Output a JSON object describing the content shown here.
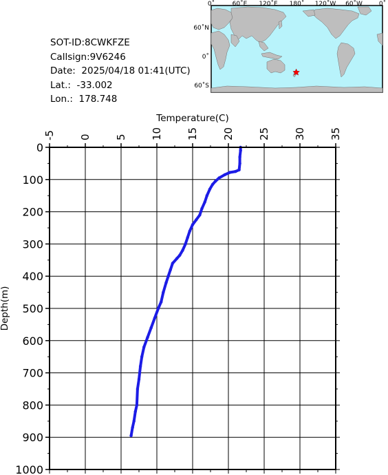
{
  "meta": {
    "sot_id": "SOT-ID:8CWKFZE",
    "callsign": "Callsign:9V6246",
    "date": "Date:  2025/04/18 01:41(UTC)",
    "lat": "Lat.:  -33.002",
    "lon": "Lon.:  178.748"
  },
  "map": {
    "lon_labels": [
      "0˚",
      "60˚E",
      "120˚E",
      "180˚",
      "120˚W",
      "60˚W",
      "0˚"
    ],
    "lat_labels": [
      "60˚N",
      "0˚",
      "60˚S"
    ],
    "ocean_color": "#b8f3fb",
    "land_color": "#bebebe",
    "marker_color": "#ff0000",
    "marker_lat": -33.002,
    "marker_lon": 178.748
  },
  "chart_data": {
    "type": "line",
    "xlabel": "Temperature(C)",
    "ylabel": "Depth(m)",
    "xlim": [
      -5,
      35
    ],
    "ylim": [
      1000,
      0
    ],
    "x_ticks": [
      "-5",
      "0",
      "5",
      "10",
      "15",
      "20",
      "25",
      "30",
      "35"
    ],
    "y_ticks": [
      "0",
      "100",
      "200",
      "300",
      "400",
      "500",
      "600",
      "700",
      "800",
      "900",
      "1000"
    ],
    "grid": true,
    "line_color": "#1c1ce6",
    "series": [
      {
        "temperature": [
          21.7,
          21.7,
          21.6,
          21.6,
          21.5,
          21.0,
          20.2,
          19.5,
          18.7,
          18.2,
          17.8,
          17.4,
          17.0,
          16.7,
          16.3,
          16.0,
          15.5,
          15.0,
          14.6,
          14.3,
          14.0,
          13.6,
          13.2,
          12.8,
          12.2,
          11.9,
          11.6,
          11.3,
          10.9,
          10.6,
          10.2,
          9.7,
          9.2,
          8.7,
          8.2,
          7.9,
          7.7,
          7.5,
          7.3,
          7.2,
          7.0,
          6.8,
          6.6,
          6.4
        ],
        "depth": [
          0,
          10,
          30,
          50,
          70,
          75,
          78,
          85,
          95,
          105,
          115,
          130,
          150,
          170,
          190,
          210,
          225,
          240,
          260,
          280,
          300,
          320,
          335,
          345,
          360,
          380,
          400,
          420,
          450,
          480,
          500,
          530,
          560,
          590,
          620,
          650,
          680,
          720,
          750,
          800,
          820,
          850,
          870,
          895
        ]
      }
    ]
  }
}
